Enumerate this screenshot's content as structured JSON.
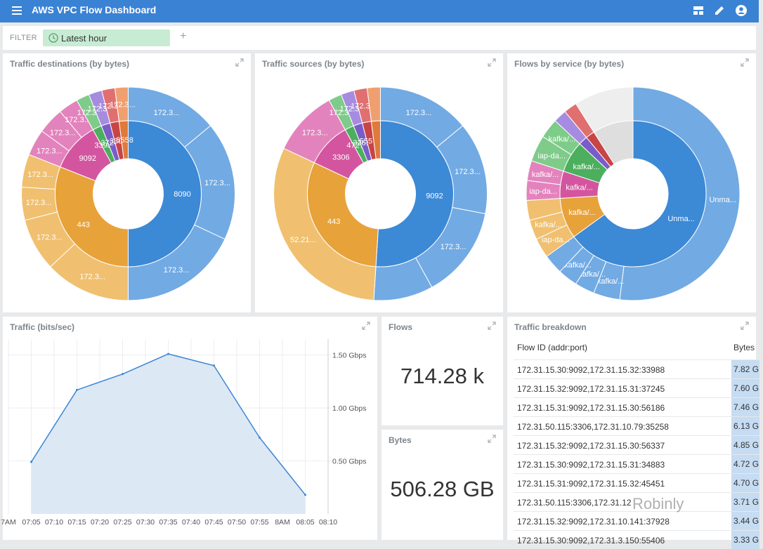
{
  "app": {
    "title": "AWS VPC Flow Dashboard"
  },
  "filter": {
    "label": "FILTER",
    "chip_label": "Latest hour",
    "add_label": "+"
  },
  "panels": {
    "destinations": {
      "title": "Traffic destinations (by bytes)",
      "inner": [
        {
          "label": "8090",
          "value": 50,
          "color": "#3c89d6"
        },
        {
          "label": "443",
          "value": 31,
          "color": "#e8a23a"
        },
        {
          "label": "9092",
          "value": 11,
          "color": "#d4559f"
        },
        {
          "label": "33988",
          "value": 2,
          "color": "#4caf5e"
        },
        {
          "label": "37245",
          "value": 2,
          "color": "#7a5cc9"
        },
        {
          "label": "3306",
          "value": 2,
          "color": "#c94444"
        },
        {
          "label": "5558",
          "value": 2,
          "color": "#e07a3a"
        }
      ],
      "outer": [
        {
          "label": "172.3...",
          "value": 14,
          "color": "#72aae3"
        },
        {
          "label": "172.3...",
          "value": 18,
          "color": "#72aae3"
        },
        {
          "label": "172.3...",
          "value": 18,
          "color": "#72aae3"
        },
        {
          "label": "172.3...",
          "value": 13,
          "color": "#f0c070"
        },
        {
          "label": "172.3...",
          "value": 8,
          "color": "#f0c070"
        },
        {
          "label": "172.3...",
          "value": 5,
          "color": "#f0c070"
        },
        {
          "label": "172.3...",
          "value": 5,
          "color": "#f0c070"
        },
        {
          "label": "172.3...",
          "value": 4,
          "color": "#e383bd"
        },
        {
          "label": "172.3...",
          "value": 4,
          "color": "#e383bd"
        },
        {
          "label": "172.3...",
          "value": 3,
          "color": "#e383bd"
        },
        {
          "label": "172.3...",
          "value": 2,
          "color": "#7fcb8a"
        },
        {
          "label": "172.3...",
          "value": 2,
          "color": "#a68ce0"
        },
        {
          "label": "172.3...",
          "value": 2,
          "color": "#e07070"
        },
        {
          "label": "172.3...",
          "value": 2,
          "color": "#f0a070"
        }
      ]
    },
    "sources": {
      "title": "Traffic sources (by bytes)",
      "inner": [
        {
          "label": "9092",
          "value": 51,
          "color": "#3c89d6"
        },
        {
          "label": "443",
          "value": 31,
          "color": "#e8a23a"
        },
        {
          "label": "3306",
          "value": 10,
          "color": "#d4559f"
        },
        {
          "label": "47270",
          "value": 2,
          "color": "#4caf5e"
        },
        {
          "label": "32610",
          "value": 2,
          "color": "#7a5cc9"
        },
        {
          "label": "55570",
          "value": 2,
          "color": "#c94444"
        },
        {
          "label": "",
          "value": 2,
          "color": "#e07a3a"
        }
      ],
      "outer": [
        {
          "label": "172.3...",
          "value": 14,
          "color": "#72aae3"
        },
        {
          "label": "172.3...",
          "value": 14,
          "color": "#72aae3"
        },
        {
          "label": "172.3...",
          "value": 14,
          "color": "#72aae3"
        },
        {
          "label": "",
          "value": 9,
          "color": "#72aae3"
        },
        {
          "label": "52.21...",
          "value": 31,
          "color": "#f0c070"
        },
        {
          "label": "172.3...",
          "value": 10,
          "color": "#e383bd"
        },
        {
          "label": "172.3...",
          "value": 2,
          "color": "#7fcb8a"
        },
        {
          "label": "172.3...",
          "value": 2,
          "color": "#a68ce0"
        },
        {
          "label": "172.3...",
          "value": 2,
          "color": "#e07070"
        },
        {
          "label": "",
          "value": 2,
          "color": "#f0a070"
        }
      ]
    },
    "services": {
      "title": "Flows by service (by bytes)",
      "inner": [
        {
          "label": "Unma...",
          "value": 65,
          "color": "#3c89d6"
        },
        {
          "label": "kafka/...",
          "value": 9,
          "color": "#e8a23a"
        },
        {
          "label": "kafka/...",
          "value": 6,
          "color": "#d4559f"
        },
        {
          "label": "kafka/...",
          "value": 7,
          "color": "#4caf5e"
        },
        {
          "label": "",
          "value": 2,
          "color": "#7a5cc9"
        },
        {
          "label": "",
          "value": 2,
          "color": "#c94444"
        },
        {
          "label": "",
          "value": 9,
          "color": "#dedede"
        }
      ],
      "outer": [
        {
          "label": "Unma...",
          "value": 52,
          "color": "#72aae3"
        },
        {
          "label": "kafka/...",
          "value": 4,
          "color": "#72aae3"
        },
        {
          "label": "kafka/...",
          "value": 3,
          "color": "#72aae3"
        },
        {
          "label": "kafka/...",
          "value": 3,
          "color": "#72aae3"
        },
        {
          "label": "",
          "value": 3,
          "color": "#72aae3"
        },
        {
          "label": "iap-da...",
          "value": 3,
          "color": "#f0c070"
        },
        {
          "label": "kafka/...",
          "value": 3,
          "color": "#f0c070"
        },
        {
          "label": "",
          "value": 3,
          "color": "#f0c070"
        },
        {
          "label": "iap-da...",
          "value": 3,
          "color": "#e383bd"
        },
        {
          "label": "kafka/...",
          "value": 3,
          "color": "#e383bd"
        },
        {
          "label": "iap-da...",
          "value": 4,
          "color": "#7fcb8a"
        },
        {
          "label": "kafka/...",
          "value": 3,
          "color": "#7fcb8a"
        },
        {
          "label": "",
          "value": 2,
          "color": "#a68ce0"
        },
        {
          "label": "",
          "value": 2,
          "color": "#e07070"
        },
        {
          "label": "",
          "value": 9,
          "color": "#eeeeee"
        }
      ]
    },
    "traffic": {
      "title": "Traffic (bits/sec)"
    },
    "flows": {
      "title": "Flows",
      "value": "714.28 k"
    },
    "bytes": {
      "title": "Bytes",
      "value": "506.28 GB"
    },
    "breakdown": {
      "title": "Traffic breakdown",
      "col_id": "Flow ID (addr:port)",
      "col_bytes": "Bytes",
      "rows": [
        {
          "id": "172.31.15.30:9092,172.31.15.32:33988",
          "bytes": "7.82 G"
        },
        {
          "id": "172.31.15.32:9092,172.31.15.31:37245",
          "bytes": "7.60 G"
        },
        {
          "id": "172.31.15.31:9092,172.31.15.30:56186",
          "bytes": "7.46 G"
        },
        {
          "id": "172.31.50.115:3306,172.31.10.79:35258",
          "bytes": "6.13 G"
        },
        {
          "id": "172.31.15.32:9092,172.31.15.30:56337",
          "bytes": "4.85 G"
        },
        {
          "id": "172.31.15.30:9092,172.31.15.31:34883",
          "bytes": "4.72 G"
        },
        {
          "id": "172.31.15.31:9092,172.31.15.32:45451",
          "bytes": "4.70 G"
        },
        {
          "id": "172.31.50.115:3306,172.31.12",
          "bytes": "3.71 G"
        },
        {
          "id": "172.31.15.32:9092,172.31.10.141:37928",
          "bytes": "3.44 G"
        },
        {
          "id": "172.31.15.30:9092,172.31.3.150:55406",
          "bytes": "3.33 G"
        }
      ]
    }
  },
  "chart_data": {
    "type": "area",
    "title": "Traffic (bits/sec)",
    "x": [
      "07:05",
      "07:15",
      "07:25",
      "07:35",
      "07:45",
      "07:55",
      "08:05"
    ],
    "y": [
      0.49,
      1.17,
      1.32,
      1.51,
      1.4,
      0.72,
      0.18
    ],
    "y_unit": "Gbps",
    "ylim": [
      0,
      1.65
    ],
    "xticks": [
      "7AM",
      "07:05",
      "07:10",
      "07:15",
      "07:20",
      "07:25",
      "07:30",
      "07:35",
      "07:40",
      "07:45",
      "07:50",
      "07:55",
      "8AM",
      "08:05",
      "08:10"
    ],
    "yticks": [
      {
        "value": 0.5,
        "label": "0.50 Gbps"
      },
      {
        "value": 1.0,
        "label": "1.00 Gbps"
      },
      {
        "value": 1.5,
        "label": "1.50 Gbps"
      }
    ],
    "line_color": "#3a86d4",
    "fill_color": "#dde8f5",
    "grid": true
  },
  "watermark": "Robinly"
}
